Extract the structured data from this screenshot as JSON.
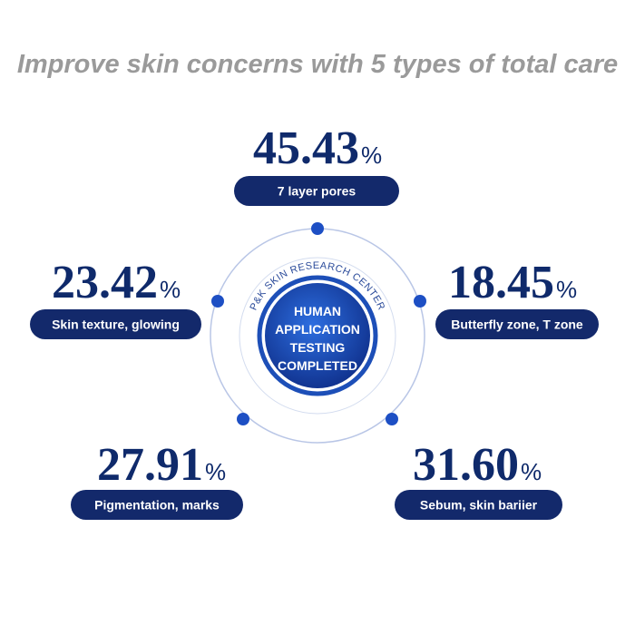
{
  "header": {
    "title": "Improve skin concerns with 5 types of total care"
  },
  "center": {
    "arc_text": "P&K SKIN RESEARCH CENTER",
    "lines": [
      "HUMAN",
      "APPLICATION",
      "TESTING",
      "COMPLETED"
    ]
  },
  "items": [
    {
      "value": "45.43",
      "unit": "%",
      "label": "7 layer pores"
    },
    {
      "value": "23.42",
      "unit": "%",
      "label": "Skin texture, glowing"
    },
    {
      "value": "18.45",
      "unit": "%",
      "label": "Butterfly zone, T zone"
    },
    {
      "value": "27.91",
      "unit": "%",
      "label": "Pigmentation, marks"
    },
    {
      "value": "31.60",
      "unit": "%",
      "label": "Sebum, skin bariier"
    }
  ]
}
